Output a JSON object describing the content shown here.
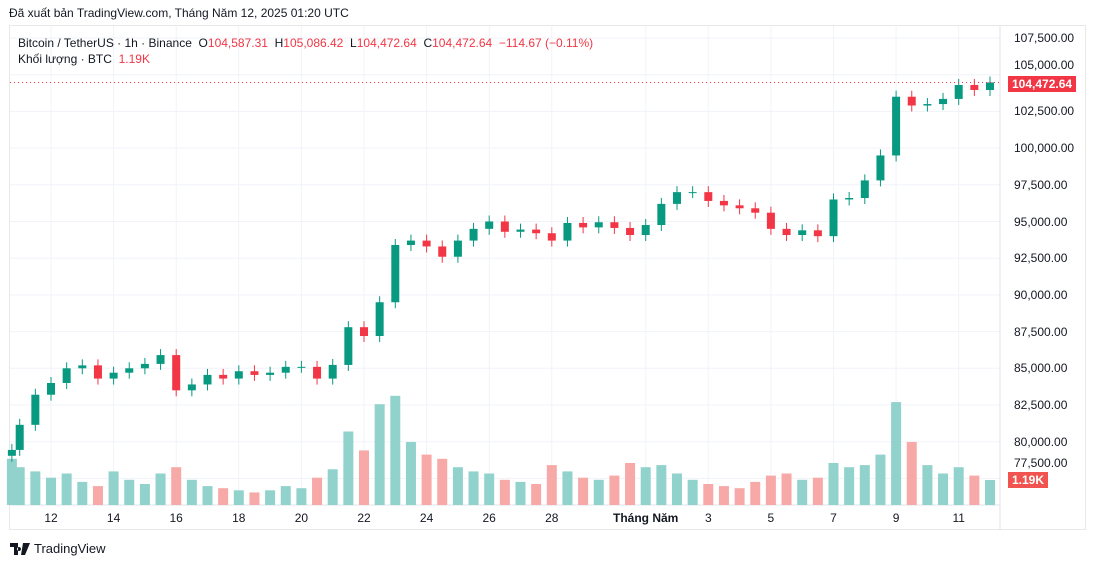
{
  "header": {
    "published": "Đã xuất bản TradingView.com, Tháng Năm 12, 2025 01:20 UTC"
  },
  "legend": {
    "symbol": "Bitcoin / TetherUS · 1h · Binance",
    "o_label": "O",
    "open": "104,587.31",
    "h_label": "H",
    "high": "105,086.42",
    "l_label": "L",
    "low": "104,472.64",
    "c_label": "C",
    "close": "104,472.64",
    "change": "−114.67 (−0.11%)",
    "volume_label": "Khối lượng · BTC",
    "volume": "1.19K"
  },
  "colors": {
    "up": "#089981",
    "down": "#f23645",
    "vol_up": "#92d2cc",
    "vol_down": "#f7a9a7",
    "grid": "#f0f3fa"
  },
  "brand": {
    "name": "TradingView",
    "icon": "tradingview-logo-icon"
  },
  "chart_data": {
    "type": "candlestick",
    "symbol": "BTCUSDT",
    "interval": "1h",
    "last_price": 104472.64,
    "last_price_label": "104,472.64",
    "last_volume_label": "1.19K",
    "ylim": [
      77500,
      108300
    ],
    "y_ticks": [
      "107,500.00",
      "105,000.00",
      "102,500.00",
      "100,000.00",
      "97,500.00",
      "95,000.00",
      "92,500.00",
      "90,000.00",
      "87,500.00",
      "85,000.00",
      "82,500.00",
      "80,000.00",
      "77,500.00"
    ],
    "y_tick_values": [
      107500,
      105000,
      102500,
      100000,
      97500,
      95000,
      92500,
      90000,
      87500,
      85000,
      82500,
      80000,
      77500
    ],
    "x_ticks": [
      {
        "label": "12",
        "date": "2025-04-12"
      },
      {
        "label": "14",
        "date": "2025-04-14"
      },
      {
        "label": "16",
        "date": "2025-04-16"
      },
      {
        "label": "18",
        "date": "2025-04-18"
      },
      {
        "label": "20",
        "date": "2025-04-20"
      },
      {
        "label": "22",
        "date": "2025-04-22"
      },
      {
        "label": "24",
        "date": "2025-04-24"
      },
      {
        "label": "26",
        "date": "2025-04-26"
      },
      {
        "label": "28",
        "date": "2025-04-28"
      },
      {
        "label": "Tháng Năm",
        "date": "2025-05-01"
      },
      {
        "label": "3",
        "date": "2025-05-03"
      },
      {
        "label": "5",
        "date": "2025-05-05"
      },
      {
        "label": "7",
        "date": "2025-05-07"
      },
      {
        "label": "9",
        "date": "2025-05-09"
      },
      {
        "label": "11",
        "date": "2025-05-11"
      }
    ],
    "grid": true,
    "series_close": [
      [
        "2025-04-10T18:00",
        79440
      ],
      [
        "2025-04-11T00:00",
        81150
      ],
      [
        "2025-04-11T12:00",
        83200
      ],
      [
        "2025-04-12T00:00",
        84000
      ],
      [
        "2025-04-12T12:00",
        85000
      ],
      [
        "2025-04-13T00:00",
        85200
      ],
      [
        "2025-04-13T12:00",
        84300
      ],
      [
        "2025-04-14T00:00",
        84700
      ],
      [
        "2025-04-14T12:00",
        85000
      ],
      [
        "2025-04-15T00:00",
        85300
      ],
      [
        "2025-04-15T12:00",
        85900
      ],
      [
        "2025-04-16T00:00",
        83500
      ],
      [
        "2025-04-16T12:00",
        83900
      ],
      [
        "2025-04-17T00:00",
        84550
      ],
      [
        "2025-04-17T12:00",
        84300
      ],
      [
        "2025-04-18T00:00",
        84800
      ],
      [
        "2025-04-18T12:00",
        84550
      ],
      [
        "2025-04-19T00:00",
        84700
      ],
      [
        "2025-04-19T12:00",
        85100
      ],
      [
        "2025-04-20T00:00",
        85100
      ],
      [
        "2025-04-20T12:00",
        84300
      ],
      [
        "2025-04-21T00:00",
        85230
      ],
      [
        "2025-04-21T12:00",
        87800
      ],
      [
        "2025-04-22T00:00",
        87200
      ],
      [
        "2025-04-22T12:00",
        89500
      ],
      [
        "2025-04-23T00:00",
        93400
      ],
      [
        "2025-04-23T12:00",
        93700
      ],
      [
        "2025-04-24T00:00",
        93300
      ],
      [
        "2025-04-24T12:00",
        92600
      ],
      [
        "2025-04-25T00:00",
        93700
      ],
      [
        "2025-04-25T12:00",
        94500
      ],
      [
        "2025-04-26T00:00",
        95000
      ],
      [
        "2025-04-26T12:00",
        94300
      ],
      [
        "2025-04-27T00:00",
        94450
      ],
      [
        "2025-04-27T12:00",
        94200
      ],
      [
        "2025-04-28T00:00",
        93700
      ],
      [
        "2025-04-28T12:00",
        94900
      ],
      [
        "2025-04-29T00:00",
        94600
      ],
      [
        "2025-04-29T12:00",
        94950
      ],
      [
        "2025-04-30T00:00",
        94560
      ],
      [
        "2025-04-30T12:00",
        94080
      ],
      [
        "2025-05-01T00:00",
        94760
      ],
      [
        "2025-05-01T12:00",
        96200
      ],
      [
        "2025-05-02T00:00",
        97000
      ],
      [
        "2025-05-02T12:00",
        97000
      ],
      [
        "2025-05-03T00:00",
        96400
      ],
      [
        "2025-05-03T12:00",
        96100
      ],
      [
        "2025-05-04T00:00",
        95900
      ],
      [
        "2025-05-04T12:00",
        95600
      ],
      [
        "2025-05-05T00:00",
        94500
      ],
      [
        "2025-05-05T12:00",
        94080
      ],
      [
        "2025-05-06T00:00",
        94400
      ],
      [
        "2025-05-06T12:00",
        94000
      ],
      [
        "2025-05-07T00:00",
        96500
      ],
      [
        "2025-05-07T12:00",
        96600
      ],
      [
        "2025-05-08T00:00",
        97800
      ],
      [
        "2025-05-08T12:00",
        99500
      ],
      [
        "2025-05-09T00:00",
        103500
      ],
      [
        "2025-05-09T12:00",
        102900
      ],
      [
        "2025-05-10T00:00",
        103000
      ],
      [
        "2025-05-10T12:00",
        103350
      ],
      [
        "2025-05-11T00:00",
        104300
      ],
      [
        "2025-05-11T12:00",
        103960
      ],
      [
        "2025-05-12T00:00",
        104472.64
      ]
    ],
    "volume_k": [
      2.2,
      1.8,
      1.6,
      1.3,
      1.5,
      1.1,
      0.9,
      1.6,
      1.2,
      1.0,
      1.5,
      1.8,
      1.2,
      0.9,
      0.8,
      0.7,
      0.6,
      0.7,
      0.9,
      0.8,
      1.3,
      1.7,
      3.5,
      2.6,
      4.8,
      5.2,
      3.0,
      2.4,
      2.2,
      1.8,
      1.6,
      1.5,
      1.2,
      1.1,
      1.0,
      1.9,
      1.6,
      1.3,
      1.2,
      1.4,
      2.0,
      1.8,
      1.9,
      1.5,
      1.2,
      1.0,
      0.9,
      0.8,
      1.1,
      1.4,
      1.5,
      1.2,
      1.3,
      2.0,
      1.8,
      1.9,
      2.4,
      4.9,
      3.0,
      1.9,
      1.5,
      1.8,
      1.4,
      1.19
    ]
  }
}
